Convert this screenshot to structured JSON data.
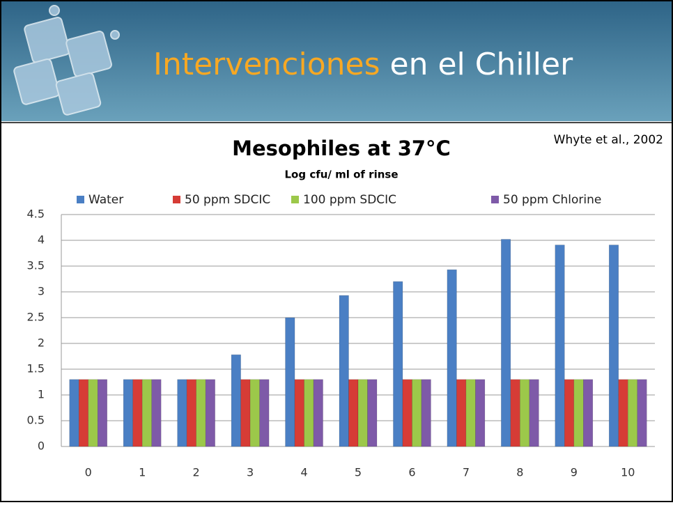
{
  "header": {
    "title_highlight": "Intervenciones",
    "title_rest": "en el Chiller"
  },
  "chart_data": {
    "type": "bar",
    "title": "Mesophiles at 37°C",
    "subtitle": "Log cfu/ ml of rinse",
    "annotation": "Whyte et al., 2002",
    "categories": [
      "0",
      "1",
      "2",
      "3",
      "4",
      "5",
      "6",
      "7",
      "8",
      "9",
      "10"
    ],
    "series": [
      {
        "name": "Water",
        "color": "#4a7fc4",
        "values": [
          1.3,
          1.3,
          1.3,
          1.78,
          2.5,
          2.93,
          3.2,
          3.43,
          4.02,
          3.91,
          3.91
        ]
      },
      {
        "name": "50 ppm SDCIC",
        "color": "#d63c36",
        "values": [
          1.3,
          1.3,
          1.3,
          1.3,
          1.3,
          1.3,
          1.3,
          1.3,
          1.3,
          1.3,
          1.3
        ]
      },
      {
        "name": "100 ppm SDCIC",
        "color": "#9cc84a",
        "values": [
          1.3,
          1.3,
          1.3,
          1.3,
          1.3,
          1.3,
          1.3,
          1.3,
          1.3,
          1.3,
          1.3
        ]
      },
      {
        "name": "50 ppm Chlorine",
        "color": "#7e5aa8",
        "values": [
          1.3,
          1.3,
          1.3,
          1.3,
          1.3,
          1.3,
          1.3,
          1.3,
          1.3,
          1.3,
          1.3
        ]
      }
    ],
    "ylim": [
      0,
      4.5
    ],
    "yticks": [
      0,
      0.5,
      1,
      1.5,
      2,
      2.5,
      3,
      3.5,
      4,
      4.5
    ],
    "grid": true,
    "legend": "top"
  }
}
